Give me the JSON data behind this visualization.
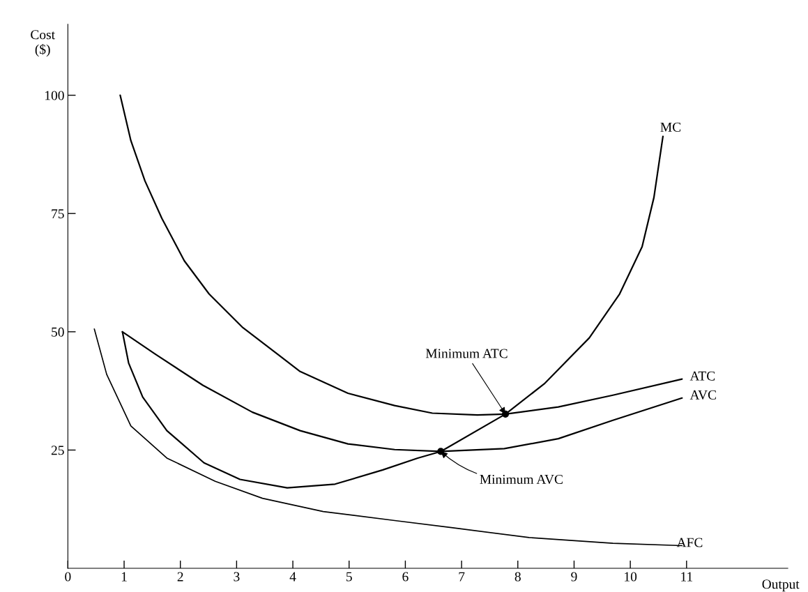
{
  "chart_data": {
    "type": "line",
    "xlabel": "Output",
    "ylabel": "Cost\n($)",
    "xlim": [
      0,
      12.8
    ],
    "ylim": [
      0,
      115
    ],
    "xticks": [
      0,
      1,
      2,
      3,
      4,
      5,
      6,
      7,
      8,
      9,
      10,
      11
    ],
    "yticks": [
      25,
      50,
      75,
      100
    ],
    "grid": false,
    "legend": false,
    "marker": "none",
    "line_style": "solid",
    "series": [
      {
        "name": "MC",
        "color": "#000000",
        "x": [
          0.97,
          1.08,
          1.33,
          1.76,
          2.42,
          3.06,
          3.9,
          4.75,
          5.6,
          6.22,
          6.63,
          7.78,
          8.47,
          9.27,
          9.81,
          10.21,
          10.42,
          10.58
        ],
        "values": [
          50,
          43.4,
          36.2,
          29.1,
          22.3,
          18.8,
          17.0,
          17.8,
          20.8,
          23.3,
          24.7,
          32.6,
          39,
          48.7,
          58,
          68,
          78.4,
          91.3
        ]
      },
      {
        "name": "ATC",
        "color": "#000000",
        "x": [
          0.93,
          1.12,
          1.37,
          1.67,
          2.07,
          2.51,
          3.1,
          4.13,
          4.98,
          5.81,
          6.48,
          7.28,
          7.78,
          8.72,
          9.69,
          10.92
        ],
        "values": [
          100,
          90.4,
          81.9,
          74,
          65,
          58,
          51,
          41.6,
          37,
          34.4,
          32.8,
          32.4,
          32.6,
          34.1,
          36.6,
          40
        ]
      },
      {
        "name": "AVC",
        "color": "#000000",
        "x": [
          0.97,
          1.55,
          2.4,
          3.28,
          4.13,
          4.98,
          5.81,
          6.63,
          7.76,
          8.72,
          9.69,
          10.92
        ],
        "values": [
          50,
          45.3,
          38.7,
          33,
          29.1,
          26.3,
          25.1,
          24.7,
          25.3,
          27.4,
          31.3,
          36
        ]
      },
      {
        "name": "AFC",
        "color": "#000000",
        "x": [
          0.47,
          0.69,
          1.12,
          1.76,
          2.62,
          3.46,
          4.54,
          5.81,
          6.82,
          8.2,
          9.69,
          10.92
        ],
        "values": [
          50.6,
          41,
          30.1,
          23.3,
          18.4,
          14.8,
          12.0,
          10.1,
          8.6,
          6.5,
          5.3,
          4.8
        ]
      },
      {
        "type": "scatter",
        "color": "#000000",
        "marker": "circle",
        "x": [
          6.63,
          7.78
        ],
        "values": [
          24.7,
          32.6
        ]
      }
    ],
    "annotations": [
      {
        "text": "Minimum ATC",
        "x": 7.78,
        "y": 32.6
      },
      {
        "text": "Minimum AVC",
        "x": 6.63,
        "y": 24.7
      }
    ]
  }
}
